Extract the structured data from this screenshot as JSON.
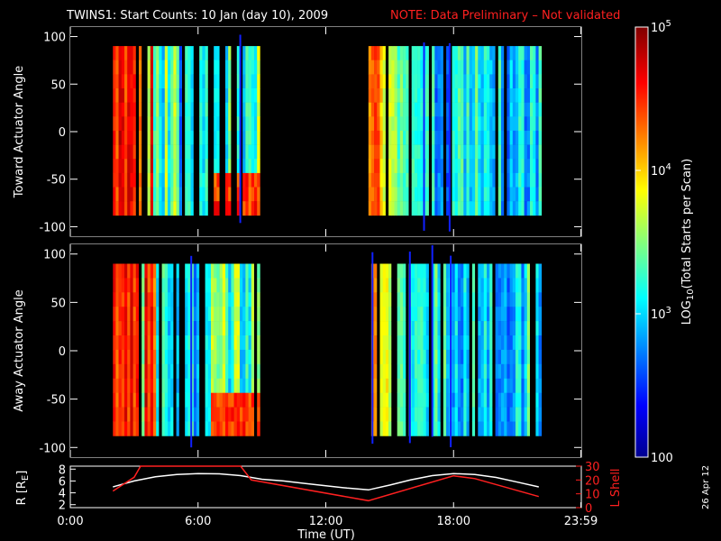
{
  "title": {
    "main": "TWINS1: Start Counts: 10 Jan (day  10), 2009",
    "note": "NOTE: Data Preliminary – Not validated",
    "note_color": "#ff2020"
  },
  "stamp": "26 Apr 12",
  "chart_data": [
    {
      "type": "heatmap",
      "name": "toward-panel",
      "ylabel": "Toward Actuator Angle",
      "ylim": [
        -110,
        110
      ],
      "yticks": [
        -100,
        -50,
        0,
        50,
        100
      ],
      "xlim": [
        0,
        24
      ],
      "data_ylim": [
        -88,
        90
      ],
      "blocks": [
        [
          2.0,
          8.9
        ],
        [
          14.0,
          22.1
        ]
      ]
    },
    {
      "type": "heatmap",
      "name": "away-panel",
      "ylabel": "Away Actuator Angle",
      "ylim": [
        -110,
        110
      ],
      "yticks": [
        -100,
        -50,
        0,
        50,
        100
      ],
      "xlim": [
        0,
        24
      ],
      "data_ylim": [
        -88,
        90
      ],
      "blocks": [
        [
          2.0,
          8.9
        ],
        [
          14.0,
          22.1
        ]
      ]
    },
    {
      "type": "line",
      "name": "orbit-panel",
      "xlabel": "Time (UT)",
      "xticks": [
        "0:00",
        "6:00",
        "12:00",
        "18:00",
        "23:59"
      ],
      "xtick_values": [
        0,
        6,
        12,
        18,
        23.98
      ],
      "ylabel_left": "R [R",
      "ylabel_left_sub": "E",
      "ylabel_left_end": "]",
      "ylim_left": [
        1.5,
        8.5
      ],
      "yticks_left": [
        2,
        4,
        6,
        8
      ],
      "ylabel_right": "L Shell",
      "ylim_right": [
        0,
        30
      ],
      "yticks_right": [
        0,
        10,
        20,
        30
      ],
      "series": [
        {
          "axis": "left",
          "color": "#ffffff",
          "x": [
            2.0,
            3.0,
            4.0,
            5.0,
            6.0,
            7.0,
            8.0,
            9.0,
            10.0,
            11.0,
            12.0,
            13.0,
            14.0,
            15.0,
            16.0,
            17.0,
            18.0,
            19.0,
            20.0,
            21.0,
            22.0
          ],
          "y": [
            5.0,
            6.0,
            6.7,
            7.1,
            7.25,
            7.2,
            6.9,
            6.3,
            6.0,
            5.6,
            5.2,
            4.8,
            4.5,
            5.3,
            6.2,
            6.9,
            7.25,
            7.1,
            6.6,
            5.8,
            5.0
          ]
        },
        {
          "axis": "right",
          "color": "#ff2020",
          "x": [
            2.0,
            3.0,
            3.3,
            8.0,
            8.5,
            14.0,
            18.0,
            19.0,
            22.0
          ],
          "y": [
            12,
            22,
            30,
            30,
            20,
            5,
            23,
            21,
            8
          ]
        }
      ]
    }
  ],
  "colorbar": {
    "label": "LOG",
    "label_sub": "10",
    "label_end": "(Total Starts per Scan)",
    "ticks": [
      {
        "base": "10",
        "exp": "5",
        "value": 100000
      },
      {
        "base": "10",
        "exp": "4",
        "value": 10000
      },
      {
        "base": "10",
        "exp": "3",
        "value": 1000
      },
      {
        "base": "100",
        "exp": "",
        "value": 100
      }
    ],
    "range": [
      100,
      100000
    ]
  }
}
